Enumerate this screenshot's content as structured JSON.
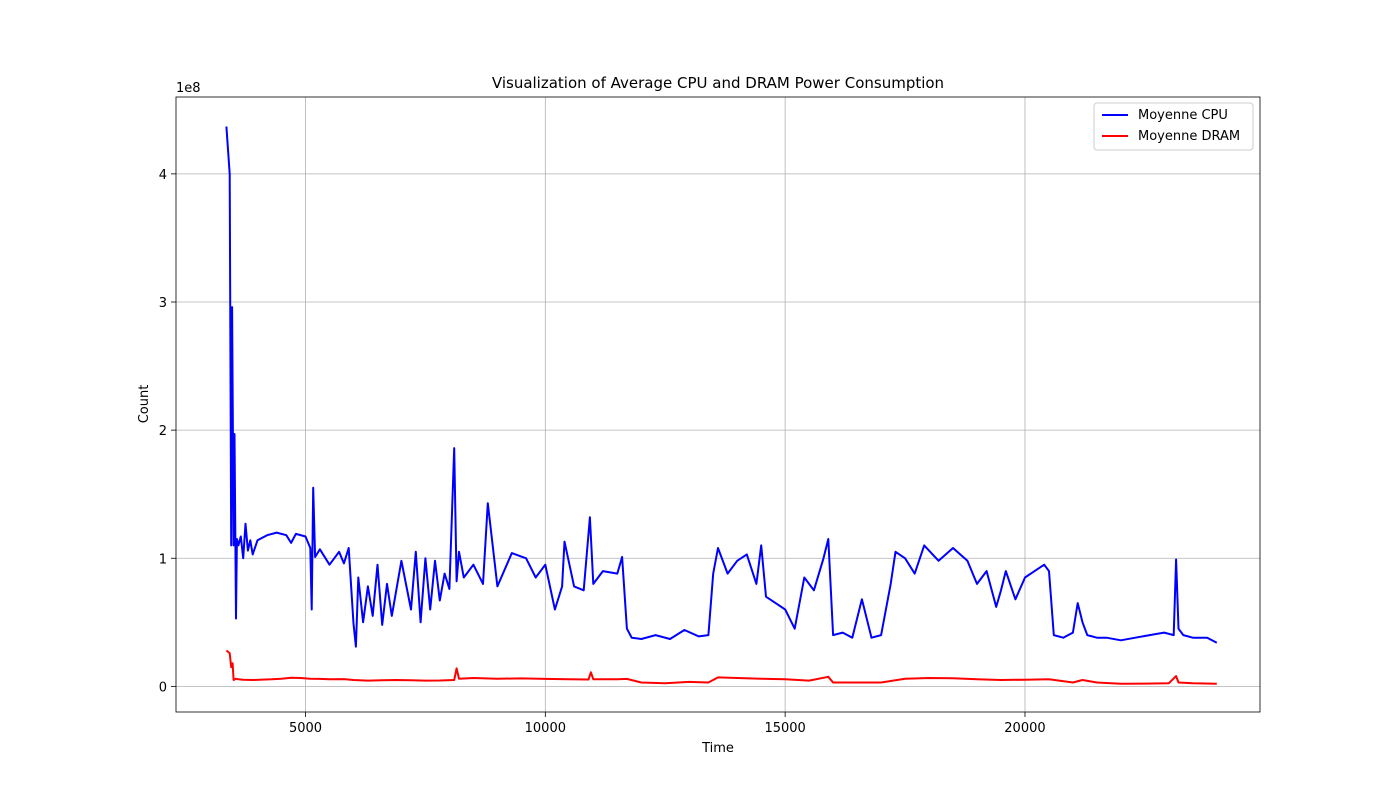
{
  "chart_data": {
    "type": "line",
    "title": "Visualization of Average CPU and DRAM Power Consumption",
    "xlabel": "Time",
    "ylabel": "Count",
    "y_offset_label": "1e8",
    "y_multiplier": 100000000,
    "xlim": [
      2300,
      24900
    ],
    "ylim": [
      -20000000,
      460000000
    ],
    "xticks": [
      5000,
      10000,
      15000,
      20000
    ],
    "xtick_labels": [
      "5000",
      "10000",
      "15000",
      "20000"
    ],
    "yticks": [
      0,
      100000000,
      200000000,
      300000000,
      400000000
    ],
    "ytick_labels": [
      "0",
      "1",
      "2",
      "3",
      "4"
    ],
    "grid": true,
    "legend_position": "top-right",
    "series": [
      {
        "name": "Moyenne CPU",
        "color": "#0000ff",
        "x": [
          3350,
          3420,
          3450,
          3470,
          3500,
          3520,
          3550,
          3570,
          3600,
          3650,
          3700,
          3750,
          3800,
          3850,
          3900,
          4000,
          4200,
          4400,
          4600,
          4700,
          4800,
          5000,
          5100,
          5130,
          5160,
          5200,
          5300,
          5500,
          5700,
          5800,
          5900,
          6000,
          6050,
          6100,
          6200,
          6300,
          6400,
          6500,
          6600,
          6700,
          6800,
          7000,
          7200,
          7300,
          7400,
          7500,
          7600,
          7700,
          7800,
          7900,
          8000,
          8100,
          8150,
          8200,
          8300,
          8500,
          8700,
          8800,
          9000,
          9300,
          9600,
          9800,
          10000,
          10200,
          10350,
          10400,
          10600,
          10800,
          10930,
          11000,
          11200,
          11500,
          11600,
          11700,
          11800,
          12000,
          12300,
          12600,
          12900,
          13200,
          13400,
          13500,
          13600,
          13800,
          14000,
          14200,
          14400,
          14500,
          14600,
          14800,
          15000,
          15200,
          15400,
          15600,
          15800,
          15900,
          16000,
          16200,
          16400,
          16600,
          16800,
          17000,
          17200,
          17300,
          17500,
          17700,
          17900,
          18200,
          18500,
          18800,
          19000,
          19200,
          19400,
          19500,
          19600,
          19800,
          20000,
          20200,
          20400,
          20500,
          20600,
          20800,
          21000,
          21100,
          21200,
          21300,
          21500,
          21700,
          22000,
          22300,
          22600,
          22900,
          23100,
          23150,
          23200,
          23300,
          23500,
          23800,
          24000
        ],
        "y": [
          437000000,
          400000000,
          110000000,
          296000000,
          110000000,
          197000000,
          53000000,
          115000000,
          110000000,
          117000000,
          100000000,
          127000000,
          106000000,
          114000000,
          103000000,
          114000000,
          118000000,
          120000000,
          118000000,
          112000000,
          119000000,
          117000000,
          108000000,
          60000000,
          155000000,
          101000000,
          107000000,
          95000000,
          105000000,
          96000000,
          108000000,
          49000000,
          31000000,
          85000000,
          50000000,
          78000000,
          55000000,
          95000000,
          48000000,
          80000000,
          55000000,
          98000000,
          60000000,
          105000000,
          50000000,
          100000000,
          60000000,
          98000000,
          67000000,
          88000000,
          76000000,
          186000000,
          82000000,
          105000000,
          85000000,
          95000000,
          80000000,
          143000000,
          78000000,
          104000000,
          100000000,
          85000000,
          95000000,
          60000000,
          78000000,
          113000000,
          78000000,
          75000000,
          132000000,
          80000000,
          90000000,
          88000000,
          101000000,
          45000000,
          38000000,
          37000000,
          40000000,
          37000000,
          44000000,
          39000000,
          40000000,
          88000000,
          108000000,
          88000000,
          98000000,
          103000000,
          80000000,
          110000000,
          70000000,
          65000000,
          60000000,
          45000000,
          85000000,
          75000000,
          100000000,
          115000000,
          40000000,
          42000000,
          38000000,
          68000000,
          38000000,
          40000000,
          80000000,
          105000000,
          100000000,
          88000000,
          110000000,
          98000000,
          108000000,
          98000000,
          80000000,
          90000000,
          62000000,
          75000000,
          90000000,
          68000000,
          85000000,
          90000000,
          95000000,
          90000000,
          40000000,
          38000000,
          42000000,
          65000000,
          50000000,
          40000000,
          38000000,
          38000000,
          36000000,
          38000000,
          40000000,
          42000000,
          40000000,
          99000000,
          45000000,
          40000000,
          38000000,
          38000000,
          34000000
        ]
      },
      {
        "name": "Moyenne DRAM",
        "color": "#ff0000",
        "x": [
          3350,
          3420,
          3450,
          3480,
          3500,
          3550,
          3600,
          3700,
          3900,
          4100,
          4300,
          4500,
          4700,
          4900,
          5100,
          5300,
          5500,
          5800,
          6000,
          6300,
          6600,
          6900,
          7200,
          7500,
          7800,
          8100,
          8150,
          8200,
          8500,
          9000,
          9500,
          10000,
          10500,
          10900,
          10950,
          11000,
          11500,
          11700,
          12000,
          12500,
          13000,
          13400,
          13600,
          14000,
          14500,
          15000,
          15500,
          15900,
          16000,
          16500,
          17000,
          17500,
          18000,
          18500,
          19000,
          19500,
          20000,
          20500,
          21000,
          21200,
          21500,
          22000,
          22500,
          23000,
          23150,
          23200,
          23500,
          24000
        ],
        "y": [
          28000000,
          26000000,
          15000000,
          18000000,
          5000000,
          6000000,
          5500000,
          5200000,
          5000000,
          5300000,
          5500000,
          6000000,
          6800000,
          6500000,
          6000000,
          5800000,
          5500000,
          5700000,
          5000000,
          4500000,
          4800000,
          5000000,
          4800000,
          4500000,
          4600000,
          5000000,
          14000000,
          6000000,
          6500000,
          6000000,
          6200000,
          5800000,
          5500000,
          5400000,
          11000000,
          5500000,
          5600000,
          5800000,
          3000000,
          2500000,
          3500000,
          3000000,
          7000000,
          6500000,
          6000000,
          5500000,
          4500000,
          7500000,
          3000000,
          3000000,
          3000000,
          6000000,
          6500000,
          6300000,
          5500000,
          5000000,
          5200000,
          5500000,
          3000000,
          5000000,
          3000000,
          2000000,
          2200000,
          2500000,
          8000000,
          3000000,
          2500000,
          2000000
        ]
      }
    ]
  }
}
